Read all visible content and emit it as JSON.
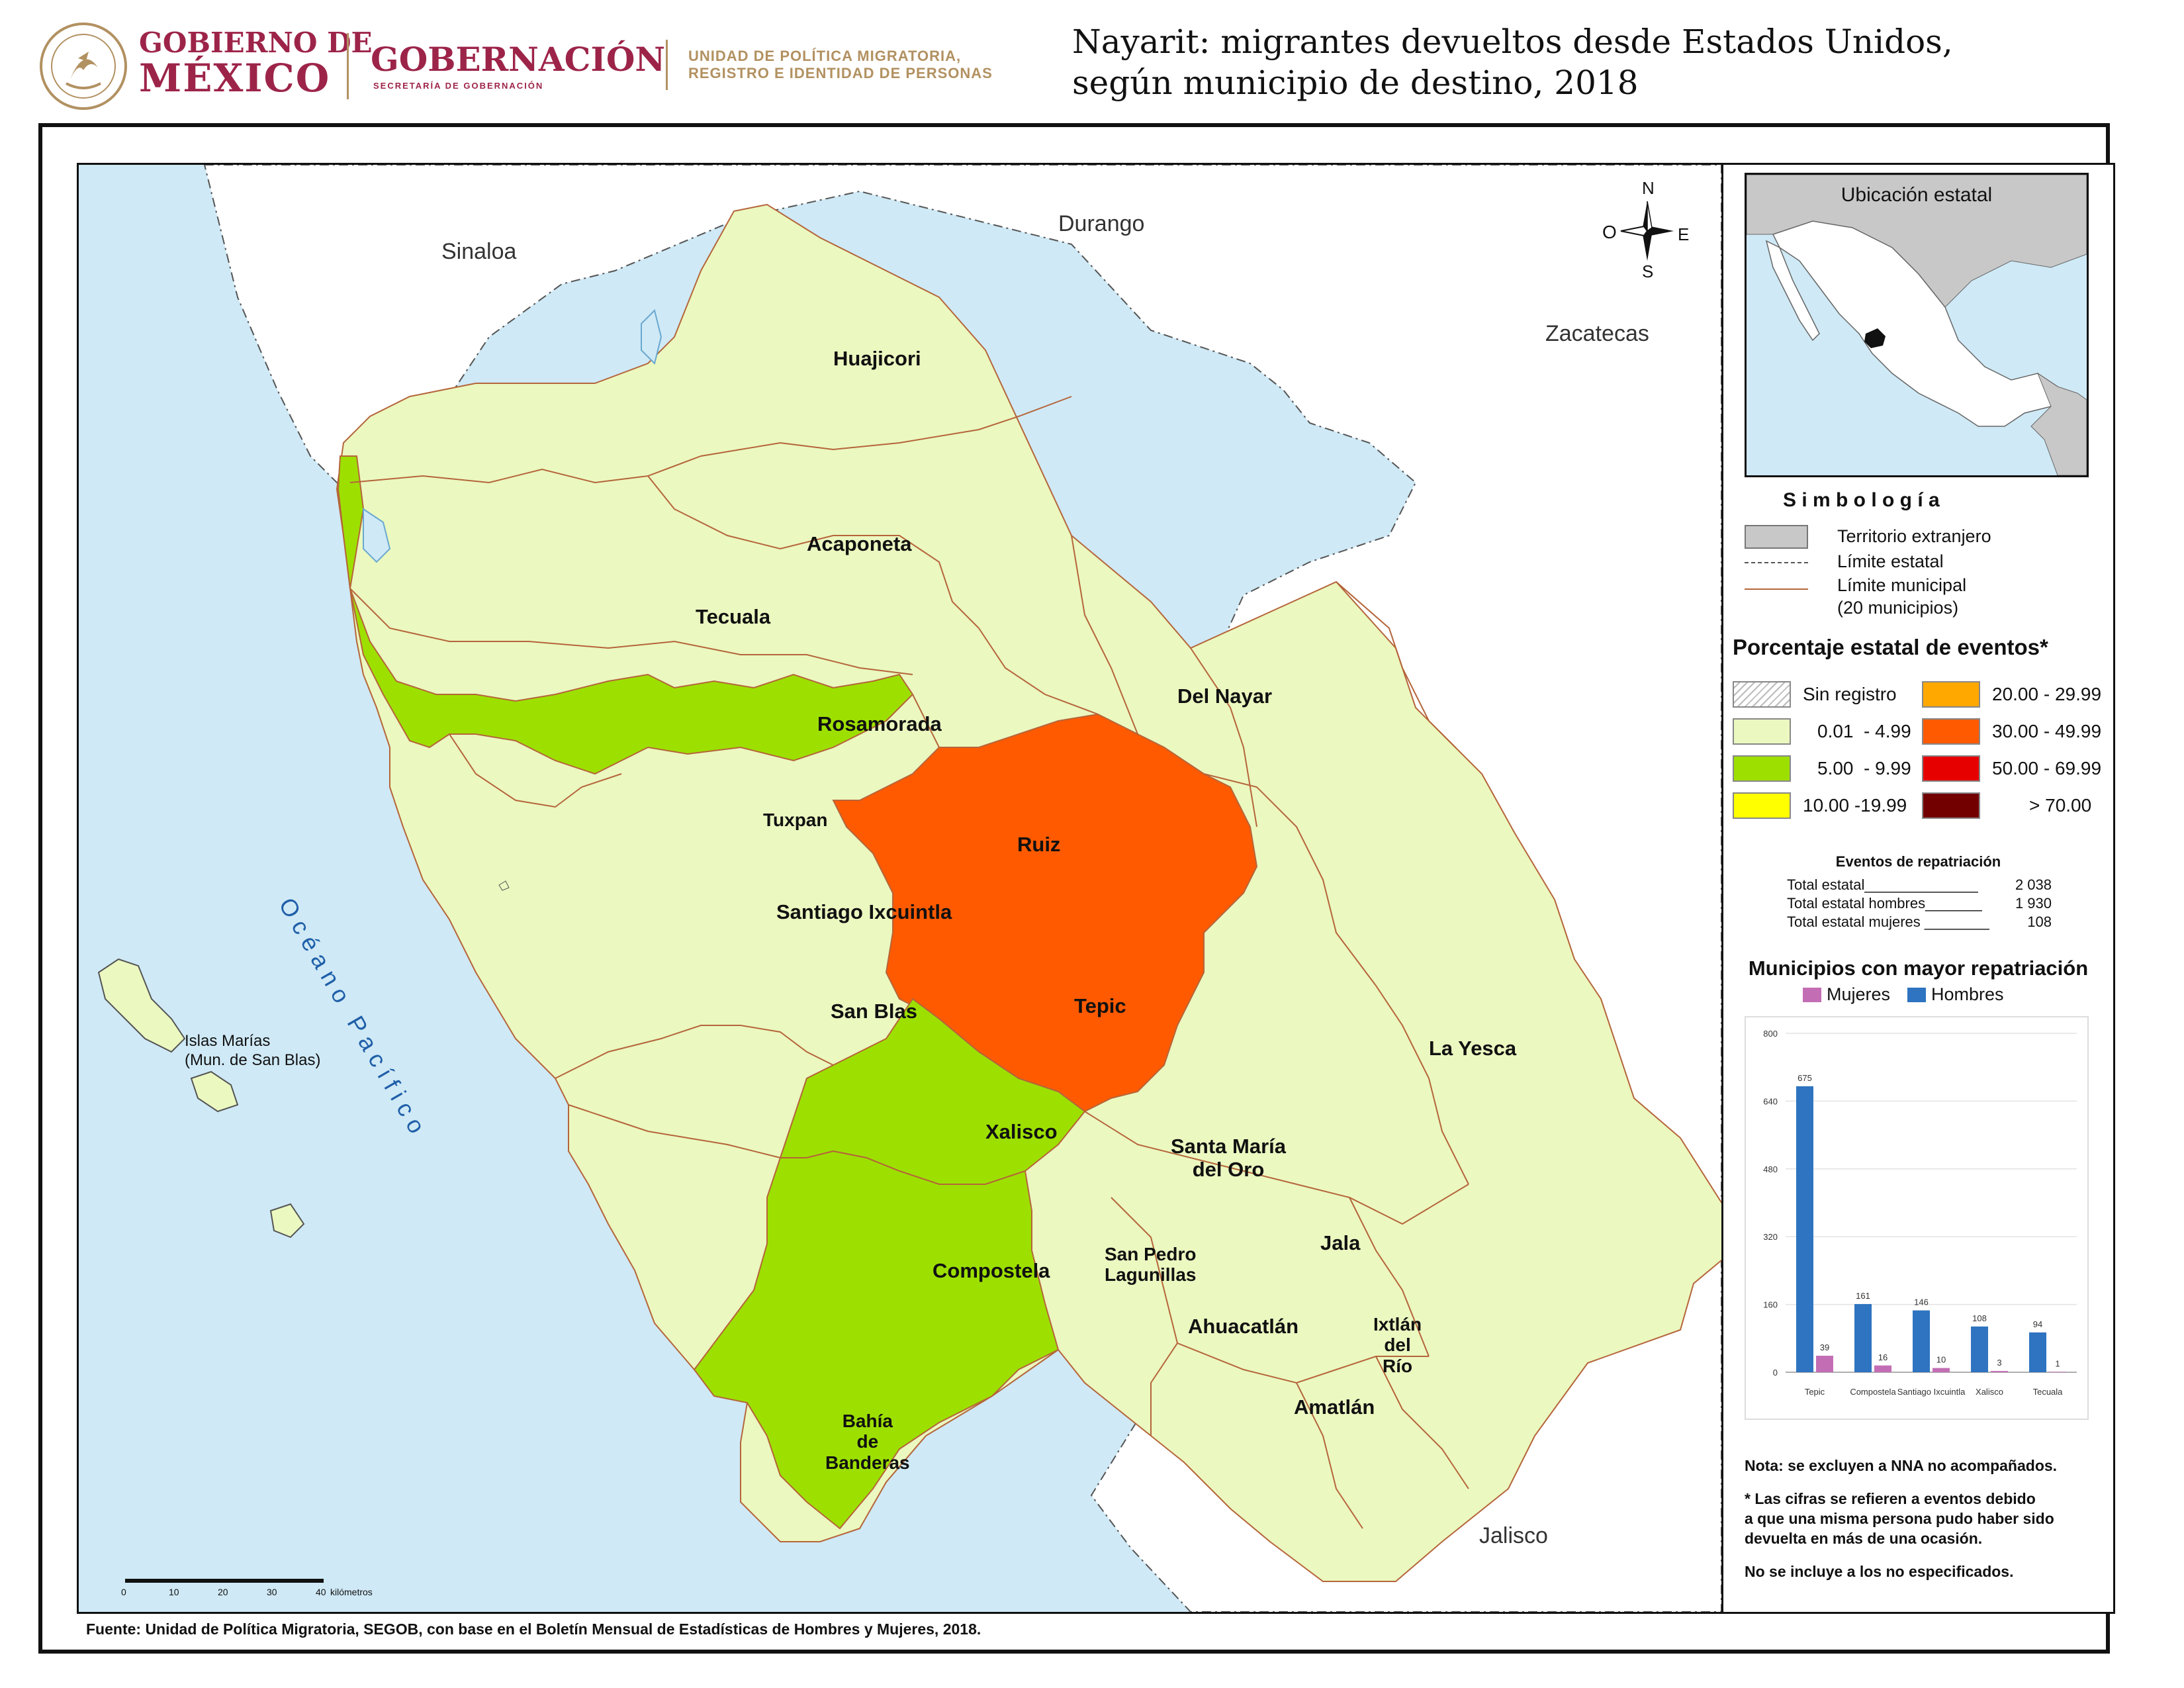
{
  "header": {
    "gov_line1": "GOBIERNO DE",
    "gov_line2": "MÉXICO",
    "gobernacion": "GOBERNACIÓN",
    "secretaria": "SECRETARÍA DE GOBERNACIÓN",
    "unit_line1": "UNIDAD DE POLÍTICA MIGRATORIA,",
    "unit_line2": "REGISTRO E IDENTIDAD DE PERSONAS",
    "seal_text": "ESTADOS UNIDOS MEXICANOS"
  },
  "title": {
    "line1": "Nayarit: migrantes devueltos desde Estados Unidos,",
    "line2": "según municipio de destino, 2018"
  },
  "map": {
    "states": [
      "Sinaloa",
      "Durango",
      "Zacatecas",
      "Jalisco"
    ],
    "ocean": "O c é a n o   P a c í f i c o",
    "islands_line1": "Islas Marías",
    "islands_line2": "(Mun. de San Blas)",
    "compass": {
      "n": "N",
      "s": "S",
      "e": "E",
      "o": "O"
    },
    "scale_ticks": [
      "0",
      "10",
      "20",
      "30",
      "40"
    ],
    "scale_unit": "kilómetros",
    "municipalities": {
      "huajicori": "Huajicori",
      "acaponeta": "Acaponeta",
      "tecuala": "Tecuala",
      "rosamorada": "Rosamorada",
      "del_nayar": "Del Nayar",
      "tuxpan": "Tuxpan",
      "ruiz": "Ruiz",
      "santiago": "Santiago Ixcuintla",
      "san_blas": "San Blas",
      "tepic": "Tepic",
      "la_yesca": "La Yesca",
      "xalisco": "Xalisco",
      "santa_maria_1": "Santa María",
      "santa_maria_2": "del Oro",
      "compostela": "Compostela",
      "san_pedro_1": "San Pedro",
      "san_pedro_2": "Lagunillas",
      "jala": "Jala",
      "ahuacatlan": "Ahuacatlán",
      "ixtlan_1": "Ixtlán",
      "ixtlan_2": "del",
      "ixtlan_3": "Río",
      "amatlan": "Amatlán",
      "bahia_1": "Bahía",
      "bahia_2": "de",
      "bahia_3": "Banderas"
    },
    "colors": {
      "sea": "#cfe9f6",
      "foreign": "#ffffff",
      "class_low": "#ebf8c0",
      "class_mid": "#9de000",
      "class_tepic": "#ff5a00",
      "boundary": "#b5653a"
    }
  },
  "panel": {
    "inset_title": "Ubicación estatal",
    "simbologia_title": "S i m b o l o g í a",
    "simbologia_items": {
      "foreign": "Territorio extranjero",
      "state_limit": "Límite estatal",
      "muni_limit_1": "Límite municipal",
      "muni_limit_2": "(20 municipios)"
    },
    "pct_title": "Porcentaje estatal de eventos*",
    "classes": [
      {
        "label": "Sin registro",
        "color": "hatch"
      },
      {
        "label": "0.01  - 4.99",
        "color": "#ebf8c0"
      },
      {
        "label": "5.00  - 9.99",
        "color": "#9de000"
      },
      {
        "label": "10.00 -19.99",
        "color": "#ffff00"
      },
      {
        "label": "20.00 - 29.99",
        "color": "#ffa800"
      },
      {
        "label": "30.00 - 49.99",
        "color": "#ff5a00"
      },
      {
        "label": "50.00 - 69.99",
        "color": "#e60000"
      },
      {
        "label": "> 70.00",
        "color": "#730000"
      }
    ],
    "eventos_title": "Eventos de repatriación",
    "totals": [
      {
        "label": "Total estatal______________",
        "value": "2 038"
      },
      {
        "label": "Total estatal hombres_______",
        "value": "1 930"
      },
      {
        "label": "Total estatal mujeres ________",
        "value": "108"
      }
    ],
    "chart_title": "Municipios con mayor repatriación",
    "notes": {
      "n1": "Nota: se excluyen a NNA no acompañados.",
      "n2a": "* Las cifras se refieren a eventos debido",
      "n2b": "a que una misma persona pudo haber sido",
      "n2c": "devuelta en más de una ocasión.",
      "n3": "No se incluye a los no especificados."
    }
  },
  "chart_data": {
    "type": "bar",
    "title": "Municipios con mayor repatriación",
    "categories": [
      "Tepic",
      "Compostela",
      "Santiago Ixcuintla",
      "Xalisco",
      "Tecuala"
    ],
    "series": [
      {
        "name": "Hombres",
        "color": "#2e74c0",
        "values": [
          675,
          161,
          146,
          108,
          94
        ]
      },
      {
        "name": "Mujeres",
        "color": "#c36eb4",
        "values": [
          39,
          16,
          10,
          3,
          1
        ]
      }
    ],
    "ylim": [
      0,
      800
    ],
    "yticks": [
      0,
      160,
      320,
      480,
      640,
      800
    ],
    "legend": "top"
  },
  "footer": {
    "source": "Fuente: Unidad de Política Migratoria, SEGOB, con base en el Boletín Mensual de Estadísticas de Hombres y Mujeres, 2018."
  }
}
